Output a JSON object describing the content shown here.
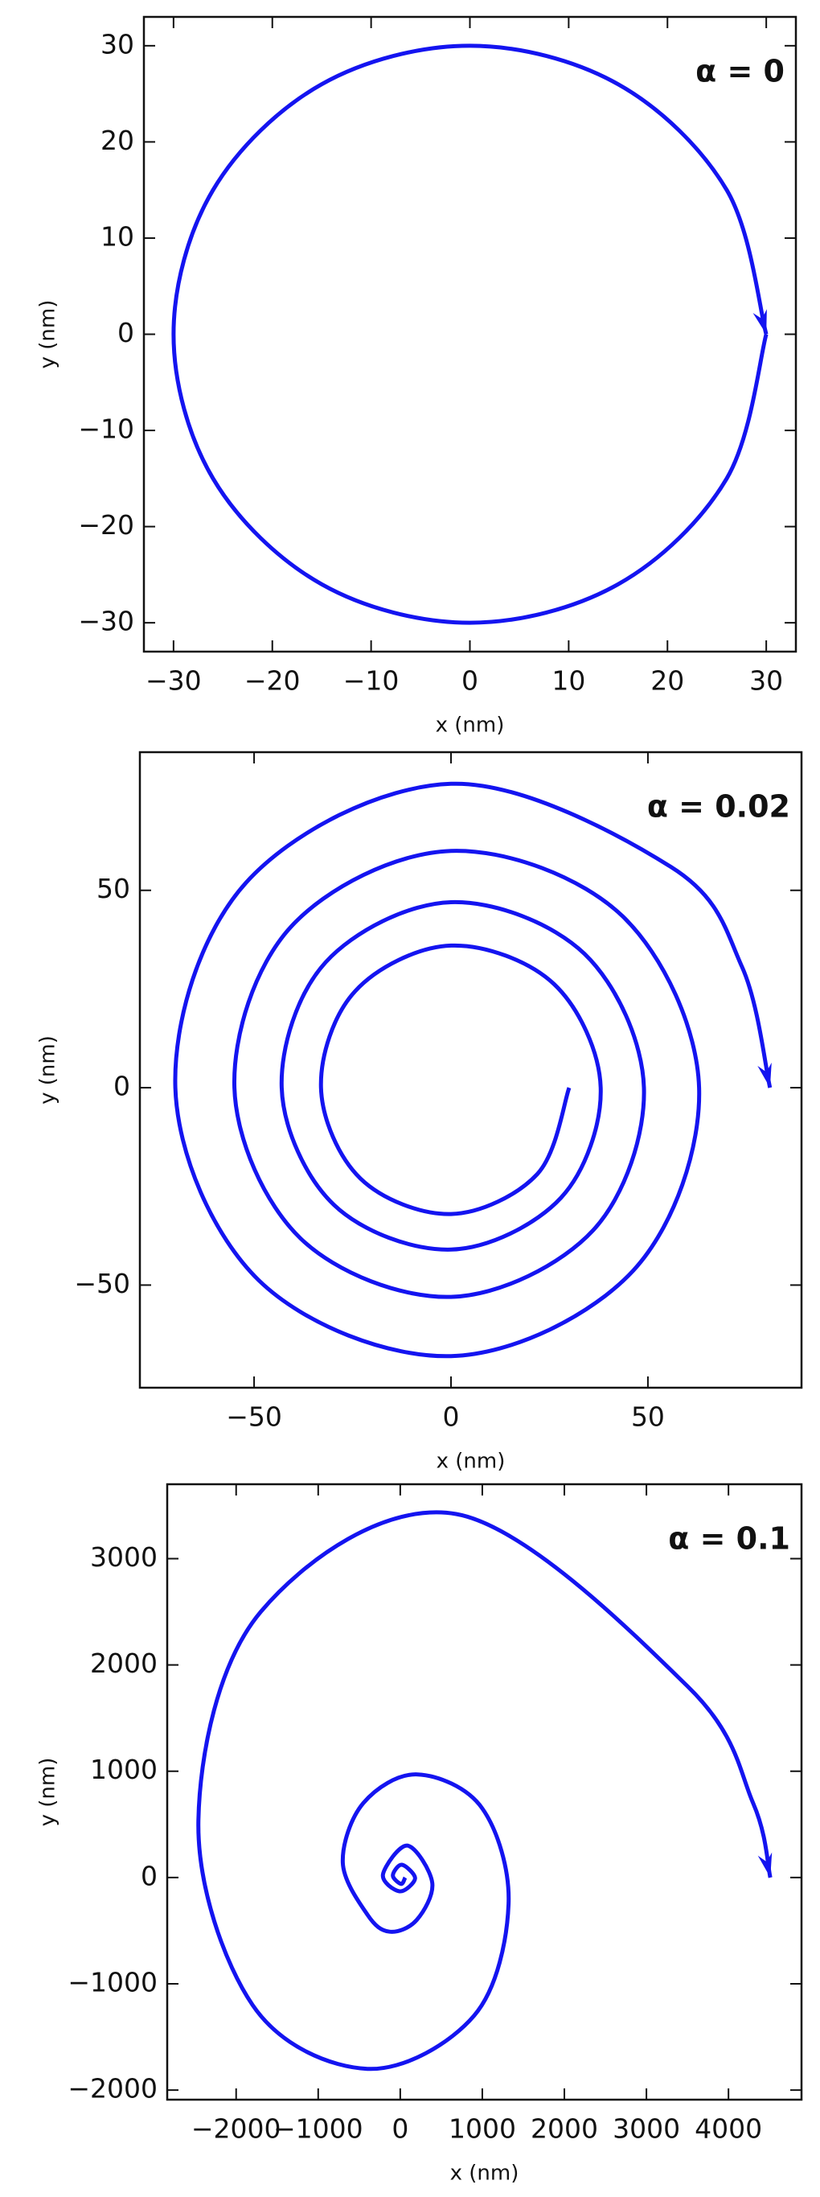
{
  "chart_data": [
    {
      "type": "line",
      "annotation": "α = 0",
      "xlabel": "x (nm)",
      "ylabel": "y (nm)",
      "series": [
        {
          "color": "#1414f0",
          "x": [
            30,
            26,
            15,
            0,
            -15,
            -26,
            -30,
            -26,
            -15,
            0,
            15,
            26,
            30
          ],
          "values": [
            0,
            -15,
            -26,
            -30,
            -26,
            -15,
            0,
            15,
            26,
            30,
            26,
            15,
            0
          ]
        }
      ],
      "xlim": [
        -33,
        33
      ],
      "ylim": [
        -33,
        33
      ],
      "xticks": [
        {
          "value": -30,
          "label": "−30"
        },
        {
          "value": -20,
          "label": "−20"
        },
        {
          "value": -10,
          "label": "−10"
        },
        0,
        10,
        20,
        30
      ],
      "yticks": [
        {
          "value": -30,
          "label": "−30"
        },
        {
          "value": -20,
          "label": "−20"
        },
        {
          "value": -10,
          "label": "−10"
        },
        0,
        10,
        20,
        30
      ]
    },
    {
      "type": "line",
      "annotation": "α = 0.02",
      "xlabel": "x (nm)",
      "ylabel": "y (nm)",
      "series": [
        {
          "color": "#1414f0",
          "x": [
            30,
            21.9,
            0,
            -23,
            -33,
            -24.4,
            0,
            26.2,
            38,
            27.9,
            0,
            -29.7,
            -43,
            -31.8,
            0,
            33.9,
            49,
            36.1,
            0,
            -38.2,
            -55,
            -40.7,
            0,
            43.5,
            63,
            46.3,
            0,
            -48.8,
            -70,
            -52,
            0,
            55.9,
            73.9,
            81
          ],
          "values": [
            0,
            -21.9,
            -32,
            -23,
            0,
            24.4,
            36,
            26.2,
            0,
            -27.9,
            -41,
            -29.7,
            0,
            31.8,
            47,
            33.9,
            0,
            -36.1,
            -53,
            -38.2,
            0,
            40.7,
            60,
            43.5,
            0,
            -46.3,
            -68,
            -48.8,
            0,
            52,
            77,
            55.9,
            30.6,
            0
          ]
        }
      ],
      "xlim": [
        -79,
        89
      ],
      "ylim": [
        -76,
        85
      ],
      "xticks": [
        {
          "value": -50,
          "label": "−50"
        },
        0,
        50
      ],
      "yticks": [
        {
          "value": -50,
          "label": "−50"
        },
        0,
        50
      ]
    },
    {
      "type": "line",
      "annotation": "α = 0.1",
      "xlabel": "x (nm)",
      "ylabel": "y (nm)",
      "series": [
        {
          "color": "#1414f0",
          "x": [
            60,
            10,
            -90,
            20,
            180,
            -10,
            -210,
            90,
            390,
            200,
            -130,
            -400,
            -700,
            -450,
            210,
            1000,
            1320,
            900,
            -400,
            -1800,
            -2460,
            -1700,
            680,
            3500,
            4300,
            4510
          ],
          "values": [
            0,
            -60,
            20,
            120,
            -10,
            -130,
            30,
            300,
            -50,
            -400,
            -510,
            -350,
            140,
            700,
            970,
            650,
            -250,
            -1300,
            -1800,
            -1200,
            540,
            2500,
            3420,
            1800,
            700,
            0
          ]
        }
      ],
      "xlim": [
        -2840,
        4890
      ],
      "ylim": [
        -2090,
        3700
      ],
      "xticks": [
        {
          "value": -2000,
          "label": "−2000"
        },
        {
          "value": -1000,
          "label": "−1000"
        },
        0,
        1000,
        2000,
        3000,
        4000
      ],
      "yticks": [
        {
          "value": -2000,
          "label": "−2000"
        },
        {
          "value": -1000,
          "label": "−1000"
        },
        0,
        1000,
        2000,
        3000
      ]
    }
  ]
}
